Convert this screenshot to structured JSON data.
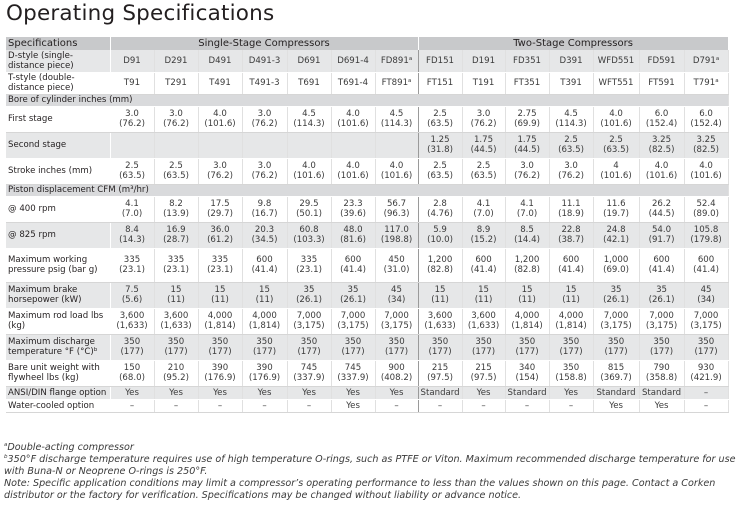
{
  "title": "Operating Specifications",
  "header": {
    "specifications": "Specifications",
    "single_stage": "Single-Stage Compressors",
    "two_stage": "Two-Stage Compressors"
  },
  "rows": [
    {
      "label": "D-style (single-distance piece)",
      "cls": "g",
      "h": 22,
      "values": [
        "D91",
        "D291",
        "D491",
        "D491-3",
        "D691",
        "D691-4",
        "FD891",
        "FD151",
        "D191",
        "FD351",
        "D391",
        "WFD551",
        "FD591",
        "D791"
      ],
      "sup": {
        "6": "a",
        "13": "a"
      }
    },
    {
      "label": "T-style (double-distance piece)",
      "cls": "w",
      "h": 22,
      "values": [
        "T91",
        "T291",
        "T491",
        "T491-3",
        "T691",
        "T691-4",
        "FT891",
        "FT151",
        "T191",
        "FT351",
        "T391",
        "WFT551",
        "FT591",
        "T791"
      ],
      "sup": {
        "6": "a",
        "13": "a"
      }
    },
    {
      "section": "Bore of cylinder inches (mm)",
      "h": 12
    },
    {
      "label": "First stage",
      "cls": "w",
      "h": 26,
      "values": [
        "3.0\n(76.2)",
        "3.0\n(76.2)",
        "4.0\n(101.6)",
        "3.0\n(76.2)",
        "4.5\n(114.3)",
        "4.0\n(101.6)",
        "4.5\n(114.3)",
        "2.5\n(63.5)",
        "3.0\n(76.2)",
        "2.75\n(69.9)",
        "4.5\n(114.3)",
        "4.0\n(101.6)",
        "6.0\n(152.4)",
        "6.0\n(152.4)"
      ]
    },
    {
      "label": "Second stage",
      "cls": "g",
      "h": 26,
      "values": [
        "",
        "",
        "",
        "",
        "",
        "",
        "",
        "1.25\n(31.8)",
        "1.75\n(44.5)",
        "1.75\n(44.5)",
        "2.5\n(63.5)",
        "2.5\n(63.5)",
        "3.25\n(82.5)",
        "3.25\n(82.5)"
      ]
    },
    {
      "label": "Stroke inches (mm)",
      "cls": "w",
      "h": 26,
      "values": [
        "2.5\n(63.5)",
        "2.5\n(63.5)",
        "3.0\n(76.2)",
        "3.0\n(76.2)",
        "4.0\n(101.6)",
        "4.0\n(101.6)",
        "4.0\n(101.6)",
        "2.5\n(63.5)",
        "2.5\n(63.5)",
        "3.0\n(76.2)",
        "3.0\n(76.2)",
        "4\n(101.6)",
        "4.0\n(101.6)",
        "4.0\n(101.6)"
      ]
    },
    {
      "section": "Piston displacement CFM (m³/hr)",
      "h": 12
    },
    {
      "label": "@ 400 rpm",
      "cls": "w",
      "h": 26,
      "values": [
        "4.1\n(7.0)",
        "8.2\n(13.9)",
        "17.5\n(29.7)",
        "9.8\n(16.7)",
        "29.5\n(50.1)",
        "23.3\n(39.6)",
        "56.7\n(96.3)",
        "2.8\n(4.76)",
        "4.1\n(7.0)",
        "4.1\n(7.0)",
        "11.1\n(18.9)",
        "11.6\n(19.7)",
        "26.2\n(44.5)",
        "52.4\n(89.0)"
      ]
    },
    {
      "label": "@ 825 rpm",
      "cls": "g",
      "h": 26,
      "values": [
        "8.4\n(14.3)",
        "16.9\n(28.7)",
        "36.0\n(61.2)",
        "20.3\n(34.5)",
        "60.8\n(103.3)",
        "48.0\n(81.6)",
        "117.0\n(198.8)",
        "5.9\n(10.0)",
        "8.9\n(15.2)",
        "8.5\n(14.4)",
        "22.8\n(38.7)",
        "24.8\n(42.1)",
        "54.0\n(91.7)",
        "105.8\n(179.8)"
      ]
    },
    {
      "label": "Maximum working pressure psig (bar g)",
      "cls": "w",
      "h": 34,
      "values": [
        "335\n(23.1)",
        "335\n(23.1)",
        "335\n(23.1)",
        "600\n(41.4)",
        "335\n(23.1)",
        "600\n(41.4)",
        "450\n(31.0)",
        "1,200\n(82.8)",
        "600\n(41.4)",
        "1,200\n(82.8)",
        "600\n(41.4)",
        "1,000\n(69.0)",
        "600\n(41.4)",
        "600\n(41.4)"
      ]
    },
    {
      "label": "Maximum brake horsepower (kW)",
      "cls": "g",
      "h": 26,
      "values": [
        "7.5\n(5.6)",
        "15\n(11)",
        "15\n(11)",
        "15\n(11)",
        "35\n(26.1)",
        "35\n(26.1)",
        "45\n(34)",
        "15\n(11)",
        "15\n(11)",
        "15\n(11)",
        "15\n(11)",
        "35\n(26.1)",
        "35\n(26.1)",
        "45\n(34)"
      ]
    },
    {
      "label": "Maximum rod load lbs (kg)",
      "cls": "w",
      "h": 26,
      "values": [
        "3,600\n(1,633)",
        "3,600\n(1,633)",
        "4,000\n(1,814)",
        "4,000\n(1,814)",
        "7,000\n(3,175)",
        "7,000\n(3,175)",
        "7,000\n(3,175)",
        "3,600\n(1,633)",
        "3,600\n(1,633)",
        "4,000\n(1,814)",
        "4,000\n(1,814)",
        "7,000\n(3,175)",
        "7,000\n(3,175)",
        "7,000\n(3,175)"
      ]
    },
    {
      "label": "Maximum discharge temperature °F (°C)",
      "cls": "g",
      "h": 26,
      "labelsup": "b",
      "values": [
        "350\n(177)",
        "350\n(177)",
        "350\n(177)",
        "350\n(177)",
        "350\n(177)",
        "350\n(177)",
        "350\n(177)",
        "350\n(177)",
        "350\n(177)",
        "350\n(177)",
        "350\n(177)",
        "350\n(177)",
        "350\n(177)",
        "350\n(177)"
      ]
    },
    {
      "label": "Bare unit weight with flywheel lbs (kg)",
      "cls": "w",
      "h": 26,
      "values": [
        "150\n(68.0)",
        "210\n(95.2)",
        "390\n(176.9)",
        "390\n(176.9)",
        "745\n(337.9)",
        "745\n(337.9)",
        "900\n(408.2)",
        "215\n(97.5)",
        "215\n(97.5)",
        "340\n(154)",
        "350\n(158.8)",
        "815\n(369.7)",
        "790\n(358.8)",
        "930\n(421.9)"
      ]
    },
    {
      "label": "ANSI/DIN flange option",
      "cls": "g",
      "h": 13,
      "values": [
        "Yes",
        "Yes",
        "Yes",
        "Yes",
        "Yes",
        "Yes",
        "Yes",
        "Standard",
        "Yes",
        "Standard",
        "Yes",
        "Standard",
        "Standard",
        "–"
      ]
    },
    {
      "label": "Water-cooled option",
      "cls": "w",
      "h": 13,
      "values": [
        "–",
        "–",
        "–",
        "–",
        "–",
        "Yes",
        "–",
        "–",
        "–",
        "–",
        "–",
        "Yes",
        "Yes",
        "–"
      ]
    }
  ],
  "notes": [
    {
      "sup": "a",
      "text": "Double-acting compressor"
    },
    {
      "sup": "b",
      "text": "350°F discharge temperature requires use of high temperature O-rings, such as PTFE or Viton. Maximum recommended discharge temperature for use with Buna-N or Neoprene O-rings is 250°F."
    },
    {
      "sup": "",
      "text": "Note: Specific application conditions may limit a compressor’s operating performance to less than the values shown on this page. Contact a Corken distributor or the factory for verification. Specifications may be changed without liability or advance notice."
    }
  ]
}
